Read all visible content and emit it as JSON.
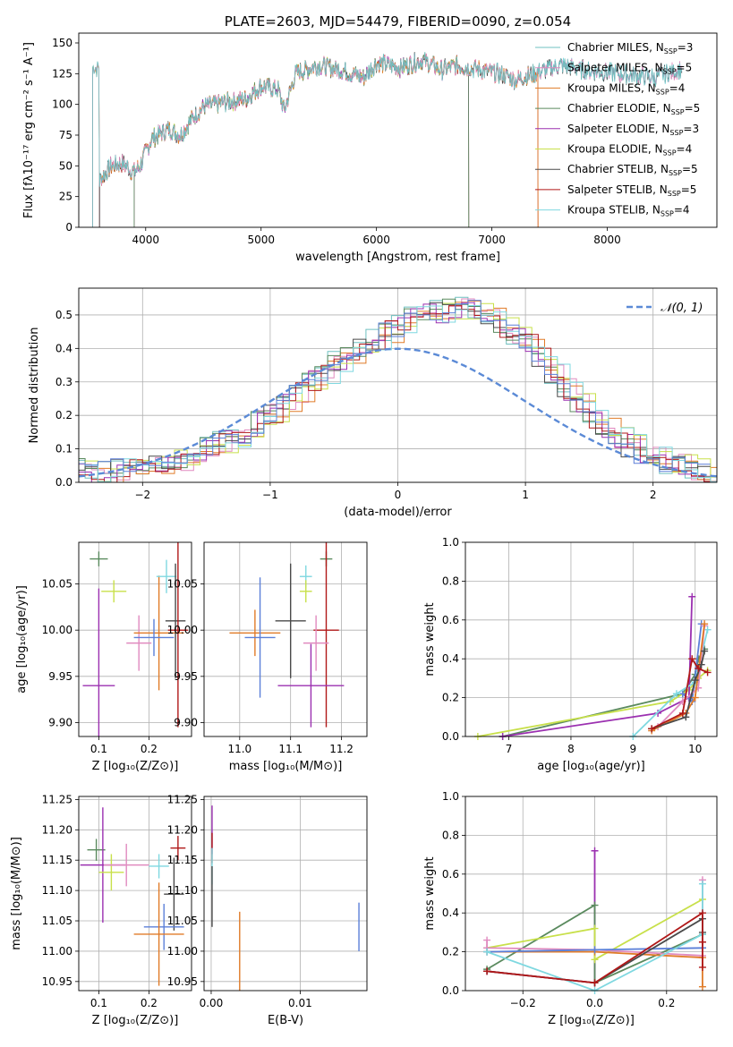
{
  "colors": {
    "chabrier_miles": "#6fc0c0",
    "salpeter_miles": "#e08abf",
    "kroupa_miles": "#e07b28",
    "chabrier_elodie": "#5a8a5e",
    "salpeter_elodie": "#9b30b0",
    "kroupa_elodie": "#c8e04a",
    "chabrier_stelib": "#4a4a4a",
    "salpeter_stelib": "#b01818",
    "kroupa_stelib": "#7fd8e0",
    "extra_blue": "#5b7fd8",
    "normal_curve": "#5b8ad6"
  },
  "chart_data": [
    {
      "id": "spectrum",
      "type": "line",
      "title": "PLATE=2603, MJD=54479, FIBERID=0090, z=0.054",
      "xlabel": "wavelength [Angstrom, rest frame]",
      "ylabel": "Flux [fλ10⁻¹⁷ erg cm⁻² s⁻¹ A⁻¹]",
      "xlim": [
        3420,
        8950
      ],
      "ylim": [
        0,
        158
      ],
      "xticks": [
        4000,
        5000,
        6000,
        7000,
        8000
      ],
      "yticks": [
        0,
        25,
        50,
        75,
        100,
        125,
        150
      ],
      "legend_position": "top-right",
      "legend": [
        {
          "label": "Chabrier MILES, N",
          "sub": "SSP",
          "tail": "=3",
          "color_key": "chabrier_miles"
        },
        {
          "label": "Salpeter MILES, N",
          "sub": "SSP",
          "tail": "=5",
          "color_key": "salpeter_miles"
        },
        {
          "label": "Kroupa MILES, N",
          "sub": "SSP",
          "tail": "=4",
          "color_key": "kroupa_miles"
        },
        {
          "label": "Chabrier ELODIE, N",
          "sub": "SSP",
          "tail": "=5",
          "color_key": "chabrier_elodie"
        },
        {
          "label": "Salpeter ELODIE, N",
          "sub": "SSP",
          "tail": "=3",
          "color_key": "salpeter_elodie"
        },
        {
          "label": "Kroupa ELODIE, N",
          "sub": "SSP",
          "tail": "=4",
          "color_key": "kroupa_elodie"
        },
        {
          "label": "Chabrier STELIB, N",
          "sub": "SSP",
          "tail": "=5",
          "color_key": "chabrier_stelib"
        },
        {
          "label": "Salpeter STELIB, N",
          "sub": "SSP",
          "tail": "=5",
          "color_key": "salpeter_stelib"
        },
        {
          "label": "Kroupa STELIB, N",
          "sub": "SSP",
          "tail": "=4",
          "color_key": "kroupa_stelib"
        }
      ],
      "anchors": [
        [
          3600,
          38
        ],
        [
          3700,
          50
        ],
        [
          3800,
          52
        ],
        [
          3900,
          45
        ],
        [
          3950,
          50
        ],
        [
          4050,
          72
        ],
        [
          4200,
          80
        ],
        [
          4300,
          75
        ],
        [
          4400,
          88
        ],
        [
          4500,
          98
        ],
        [
          4700,
          102
        ],
        [
          4860,
          104
        ],
        [
          5000,
          115
        ],
        [
          5150,
          112
        ],
        [
          5200,
          95
        ],
        [
          5300,
          125
        ],
        [
          5500,
          132
        ],
        [
          5700,
          128
        ],
        [
          5890,
          122
        ],
        [
          6000,
          134
        ],
        [
          6200,
          130
        ],
        [
          6400,
          136
        ],
        [
          6563,
          128
        ],
        [
          6700,
          132
        ],
        [
          6900,
          128
        ],
        [
          7100,
          124
        ],
        [
          7200,
          120
        ],
        [
          7400,
          126
        ],
        [
          7600,
          132
        ],
        [
          7800,
          128
        ],
        [
          8000,
          126
        ],
        [
          8200,
          124
        ],
        [
          8400,
          122
        ],
        [
          8600,
          128
        ],
        [
          8700,
          130
        ]
      ],
      "model_wavelength_range": {
        "chabrier_miles": [
          3540,
          8650
        ],
        "salpeter_miles": [
          3540,
          8650
        ],
        "kroupa_miles": [
          3540,
          7400
        ],
        "chabrier_elodie": [
          3900,
          6800
        ],
        "salpeter_elodie": [
          3900,
          6800
        ],
        "kroupa_elodie": [
          3900,
          6800
        ],
        "chabrier_stelib": [
          3600,
          8650
        ],
        "salpeter_stelib": [
          3600,
          7400
        ],
        "kroupa_stelib": [
          3600,
          8650
        ]
      }
    },
    {
      "id": "residuals",
      "type": "line",
      "xlabel": "(data-model)/error",
      "ylabel": "Normed distribution",
      "xlim": [
        -2.5,
        2.5
      ],
      "ylim": [
        0,
        0.58
      ],
      "xticks": [
        -2,
        -1,
        0,
        1,
        2
      ],
      "yticks": [
        0.0,
        0.1,
        0.2,
        0.3,
        0.4,
        0.5
      ],
      "legend_position": "top-right",
      "legend_label": "𝒩(0, 1)",
      "bin_width": 0.1,
      "histogram_template": [
        0.04,
        0.03,
        0.03,
        0.04,
        0.04,
        0.05,
        0.06,
        0.07,
        0.07,
        0.09,
        0.11,
        0.12,
        0.14,
        0.15,
        0.18,
        0.21,
        0.24,
        0.27,
        0.3,
        0.33,
        0.36,
        0.38,
        0.41,
        0.43,
        0.45,
        0.47,
        0.49,
        0.5,
        0.51,
        0.52,
        0.52,
        0.51,
        0.49,
        0.46,
        0.44,
        0.41,
        0.37,
        0.33,
        0.28,
        0.23,
        0.19,
        0.16,
        0.13,
        0.11,
        0.09,
        0.07,
        0.06,
        0.05,
        0.04,
        0.03
      ]
    },
    {
      "id": "age_vs_Z",
      "type": "scatter",
      "xlabel": "Z [log₁₀(Z/Z⊙)]",
      "ylabel": "age  [log₁₀(age/yr)]",
      "xlim": [
        0.06,
        0.285
      ],
      "ylim": [
        9.885,
        10.095
      ],
      "xticks": [
        0.1,
        0.2
      ],
      "yticks": [
        9.9,
        9.95,
        10.0,
        10.05
      ],
      "points": [
        {
          "k": "chabrier_elodie",
          "x": 0.1,
          "xe": 0.018,
          "y": 10.077,
          "ye": 0.008
        },
        {
          "k": "salpeter_elodie",
          "x": 0.1,
          "xe": 0.032,
          "y": 9.94,
          "ye": 0.105
        },
        {
          "k": "kroupa_elodie",
          "x": 0.13,
          "xe": 0.025,
          "y": 10.042,
          "ye": 0.012
        },
        {
          "k": "salpeter_miles",
          "x": 0.18,
          "xe": 0.025,
          "y": 9.986,
          "ye": 0.03
        },
        {
          "k": "kroupa_miles",
          "x": 0.22,
          "xe": 0.05,
          "y": 9.997,
          "ye": 0.062
        },
        {
          "k": "extra_blue",
          "x": 0.21,
          "xe": 0.04,
          "y": 9.992,
          "ye": 0.02
        },
        {
          "k": "kroupa_stelib",
          "x": 0.235,
          "xe": 0.02,
          "y": 10.058,
          "ye": 0.018
        },
        {
          "k": "chabrier_stelib",
          "x": 0.253,
          "xe": 0.02,
          "y": 10.01,
          "ye": 0.062
        },
        {
          "k": "salpeter_stelib",
          "x": 0.258,
          "xe": 0.02,
          "y": 10.0,
          "ye": 0.105
        }
      ]
    },
    {
      "id": "age_vs_mass",
      "type": "scatter",
      "xlabel": "mass [log₁₀(M/M⊙)]",
      "ylabel": "",
      "xlim": [
        10.93,
        11.25
      ],
      "ylim": [
        9.885,
        10.095
      ],
      "xticks": [
        11.0,
        11.1,
        11.2
      ],
      "yticks": [
        9.9,
        9.95,
        10.0,
        10.05
      ],
      "points": [
        {
          "k": "chabrier_elodie",
          "x": 11.17,
          "xe": 0.012,
          "y": 10.077,
          "ye": 0.008
        },
        {
          "k": "kroupa_stelib",
          "x": 11.13,
          "xe": 0.012,
          "y": 10.058,
          "ye": 0.012
        },
        {
          "k": "kroupa_elodie",
          "x": 11.13,
          "xe": 0.012,
          "y": 10.042,
          "ye": 0.012
        },
        {
          "k": "chabrier_stelib",
          "x": 11.1,
          "xe": 0.03,
          "y": 10.01,
          "ye": 0.062
        },
        {
          "k": "kroupa_miles",
          "x": 11.03,
          "xe": 0.05,
          "y": 9.997,
          "ye": 0.025
        },
        {
          "k": "extra_blue",
          "x": 11.04,
          "xe": 0.03,
          "y": 9.992,
          "ye": 0.065
        },
        {
          "k": "salpeter_stelib",
          "x": 11.17,
          "xe": 0.025,
          "y": 10.0,
          "ye": 0.105
        },
        {
          "k": "salpeter_miles",
          "x": 11.15,
          "xe": 0.025,
          "y": 9.986,
          "ye": 0.03
        },
        {
          "k": "salpeter_elodie",
          "x": 11.14,
          "xe": 0.065,
          "y": 9.94,
          "ye": 0.045
        }
      ]
    },
    {
      "id": "mass_weight_vs_age",
      "type": "line",
      "xlabel": "age  [log₁₀(age/yr)]",
      "ylabel": "mass weight",
      "xlim": [
        6.3,
        10.35
      ],
      "ylim": [
        0,
        1.0
      ],
      "xticks": [
        6,
        7,
        8,
        9,
        10
      ],
      "yticks": [
        0.0,
        0.2,
        0.4,
        0.6,
        0.8,
        1.0
      ],
      "series": [
        {
          "k": "chabrier_elodie",
          "x": [
            6.9,
            9.8,
            10.0,
            10.05,
            10.15
          ],
          "y": [
            0.0,
            0.22,
            0.32,
            0.4,
            0.45
          ]
        },
        {
          "k": "kroupa_elodie",
          "x": [
            6.5,
            9.6,
            9.9,
            10.05,
            10.2
          ],
          "y": [
            0.0,
            0.18,
            0.24,
            0.3,
            0.34
          ]
        },
        {
          "k": "salpeter_elodie",
          "x": [
            6.9,
            9.4,
            9.9,
            9.95
          ],
          "y": [
            0.0,
            0.12,
            0.2,
            0.72
          ]
        },
        {
          "k": "extra_blue",
          "x": [
            9.8,
            9.95,
            10.1
          ],
          "y": [
            0.22,
            0.18,
            0.58
          ]
        },
        {
          "k": "kroupa_stelib",
          "x": [
            9.0,
            9.7,
            10.0,
            10.2
          ],
          "y": [
            0.0,
            0.22,
            0.28,
            0.55
          ]
        },
        {
          "k": "salpeter_miles",
          "x": [
            9.4,
            9.8,
            10.05,
            10.15
          ],
          "y": [
            0.05,
            0.18,
            0.25,
            0.57
          ]
        },
        {
          "k": "kroupa_miles",
          "x": [
            9.3,
            9.85,
            10.0,
            10.15
          ],
          "y": [
            0.03,
            0.12,
            0.2,
            0.58
          ]
        },
        {
          "k": "chabrier_stelib",
          "x": [
            9.3,
            9.85,
            10.0,
            10.1,
            10.15
          ],
          "y": [
            0.04,
            0.1,
            0.29,
            0.37,
            0.44
          ]
        },
        {
          "k": "salpeter_stelib",
          "x": [
            9.3,
            9.8,
            9.95,
            10.05,
            10.2
          ],
          "y": [
            0.04,
            0.12,
            0.4,
            0.35,
            0.33
          ]
        }
      ]
    },
    {
      "id": "mass_vs_Z",
      "type": "scatter",
      "xlabel": "Z [log₁₀(Z/Z⊙)]",
      "ylabel": "mass [log₁₀(M/M⊙)]",
      "xlim": [
        0.06,
        0.285
      ],
      "ylim": [
        10.935,
        11.255
      ],
      "xticks": [
        0.1,
        0.2
      ],
      "yticks": [
        10.95,
        11.0,
        11.05,
        11.1,
        11.15,
        11.2,
        11.25
      ],
      "points": [
        {
          "k": "chabrier_elodie",
          "x": 0.095,
          "xe": 0.018,
          "y": 11.167,
          "ye": 0.018
        },
        {
          "k": "salpeter_elodie",
          "x": 0.108,
          "xe": 0.045,
          "y": 11.142,
          "ye": 0.095
        },
        {
          "k": "kroupa_elodie",
          "x": 0.125,
          "xe": 0.025,
          "y": 11.13,
          "ye": 0.03
        },
        {
          "k": "salpeter_miles",
          "x": 0.155,
          "xe": 0.045,
          "y": 11.142,
          "ye": 0.035
        },
        {
          "k": "kroupa_stelib",
          "x": 0.22,
          "xe": 0.02,
          "y": 11.14,
          "ye": 0.02
        },
        {
          "k": "salpeter_stelib",
          "x": 0.258,
          "xe": 0.015,
          "y": 11.17,
          "ye": 0.02
        },
        {
          "k": "chabrier_stelib",
          "x": 0.25,
          "xe": 0.02,
          "y": 11.094,
          "ye": 0.06
        },
        {
          "k": "extra_blue",
          "x": 0.23,
          "xe": 0.04,
          "y": 11.04,
          "ye": 0.038
        },
        {
          "k": "kroupa_miles",
          "x": 0.22,
          "xe": 0.05,
          "y": 11.028,
          "ye": 0.085
        }
      ]
    },
    {
      "id": "mass_vs_EBV",
      "type": "scatter",
      "xlabel": "E(B-V)",
      "ylabel": "",
      "xlim": [
        -0.0008,
        0.0175
      ],
      "ylim": [
        10.935,
        11.255
      ],
      "xticks": [
        0.0,
        0.01
      ],
      "yticks": [
        10.95,
        11.0,
        11.05,
        11.1,
        11.15,
        11.2,
        11.25
      ],
      "points": [
        {
          "k": "salpeter_elodie",
          "x": 0.0001,
          "xe": 0,
          "y": 11.2,
          "ye": 0.04
        },
        {
          "k": "salpeter_stelib",
          "x": 0.0001,
          "xe": 0,
          "y": 11.17,
          "ye": 0.025
        },
        {
          "k": "kroupa_stelib",
          "x": 0.0001,
          "xe": 0,
          "y": 11.14,
          "ye": 0.03
        },
        {
          "k": "chabrier_stelib",
          "x": 0.0001,
          "xe": 0,
          "y": 11.09,
          "ye": 0.05
        },
        {
          "k": "kroupa_miles",
          "x": 0.0032,
          "xe": 0,
          "y": 11.0,
          "ye": 0.065
        },
        {
          "k": "extra_blue",
          "x": 0.0166,
          "xe": 0,
          "y": 11.04,
          "ye": 0.04
        }
      ]
    },
    {
      "id": "mass_weight_vs_Z",
      "type": "line",
      "xlabel": "Z [log₁₀(Z/Z⊙)]",
      "ylabel": "mass weight",
      "xlim": [
        -0.36,
        0.34
      ],
      "ylim": [
        0,
        1.0
      ],
      "xticks": [
        -0.2,
        0.0,
        0.2
      ],
      "yticks": [
        0.0,
        0.2,
        0.4,
        0.6,
        0.8,
        1.0
      ],
      "series": [
        {
          "k": "salpeter_elodie",
          "x": [
            -0.3,
            0.0,
            0.0
          ],
          "y": [
            0.1,
            0.04,
            0.72
          ]
        },
        {
          "k": "chabrier_elodie",
          "x": [
            -0.3,
            0.0,
            0.0,
            0.3,
            0.3
          ],
          "y": [
            0.11,
            0.44,
            0.04,
            0.29,
            0.22
          ]
        },
        {
          "k": "kroupa_elodie",
          "x": [
            -0.3,
            0.0,
            0.0,
            0.3
          ],
          "y": [
            0.22,
            0.32,
            0.16,
            0.47
          ]
        },
        {
          "k": "salpeter_miles",
          "x": [
            -0.3,
            -0.3,
            0.0,
            0.3,
            0.3
          ],
          "y": [
            0.26,
            0.22,
            0.21,
            0.18,
            0.57
          ]
        },
        {
          "k": "kroupa_miles",
          "x": [
            -0.3,
            0.0,
            0.3,
            0.3
          ],
          "y": [
            0.2,
            0.2,
            0.17,
            0.02
          ]
        },
        {
          "k": "extra_blue",
          "x": [
            -0.3,
            0.0,
            0.3
          ],
          "y": [
            0.2,
            0.21,
            0.22
          ]
        },
        {
          "k": "kroupa_stelib",
          "x": [
            -0.3,
            0.0,
            0.3,
            0.3
          ],
          "y": [
            0.2,
            0.0,
            0.29,
            0.55
          ]
        },
        {
          "k": "chabrier_stelib",
          "x": [
            -0.3,
            0.0,
            0.3,
            0.3
          ],
          "y": [
            0.1,
            0.04,
            0.37,
            0.3
          ]
        },
        {
          "k": "salpeter_stelib",
          "x": [
            -0.3,
            0.0,
            0.3,
            0.3,
            0.3
          ],
          "y": [
            0.1,
            0.04,
            0.4,
            0.25,
            0.12
          ]
        }
      ]
    }
  ]
}
